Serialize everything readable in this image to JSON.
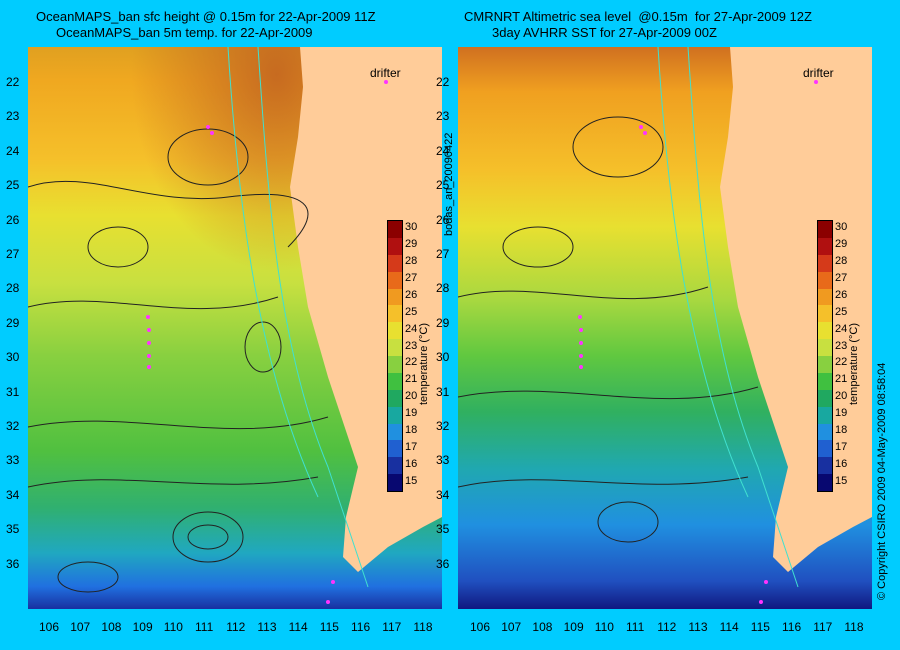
{
  "left_panel": {
    "title_line1": "OceanMAPS_ban sfc height @ 0.15m for 22-Apr-2009 11Z",
    "title_line2": "OceanMAPS_ban 5m temp. for 22-Apr-2009"
  },
  "right_panel": {
    "title_line1": "CMRNRT Altimetric sea level  @0.15m  for 27-Apr-2009 12Z",
    "title_line2": "3day AVHRR SST for 27-Apr-2009 00Z"
  },
  "drifter_label": "drifter",
  "colorbar": {
    "label": "temperature (°C)",
    "ticks": [
      "30",
      "29",
      "28",
      "27",
      "26",
      "25",
      "24",
      "23",
      "22",
      "21",
      "20",
      "19",
      "18",
      "17",
      "16",
      "15"
    ],
    "colors": [
      "#8b0000",
      "#b01010",
      "#d53a1a",
      "#e86a1a",
      "#f09a20",
      "#f5c02a",
      "#e8e030",
      "#c8e040",
      "#88d040",
      "#40c040",
      "#20a860",
      "#18a8a0",
      "#2090e0",
      "#2060d0",
      "#1830a0",
      "#080870"
    ]
  },
  "lat_ticks": [
    "22",
    "23",
    "24",
    "25",
    "26",
    "27",
    "28",
    "29",
    "30",
    "31",
    "32",
    "33",
    "34",
    "35",
    "36"
  ],
  "lon_ticks": [
    "106",
    "107",
    "108",
    "109",
    "110",
    "111",
    "112",
    "113",
    "114",
    "115",
    "116",
    "117",
    "118"
  ],
  "side_text": {
    "left": "bodas_an_20090422",
    "right": "© Copyright CSIRO 2009   04-May-2009 08:58:04"
  },
  "colors": {
    "background": "#00ccff",
    "land": "#ffcc99",
    "drifter": "#ff33ff",
    "coast_contour": "#40e0d0"
  }
}
